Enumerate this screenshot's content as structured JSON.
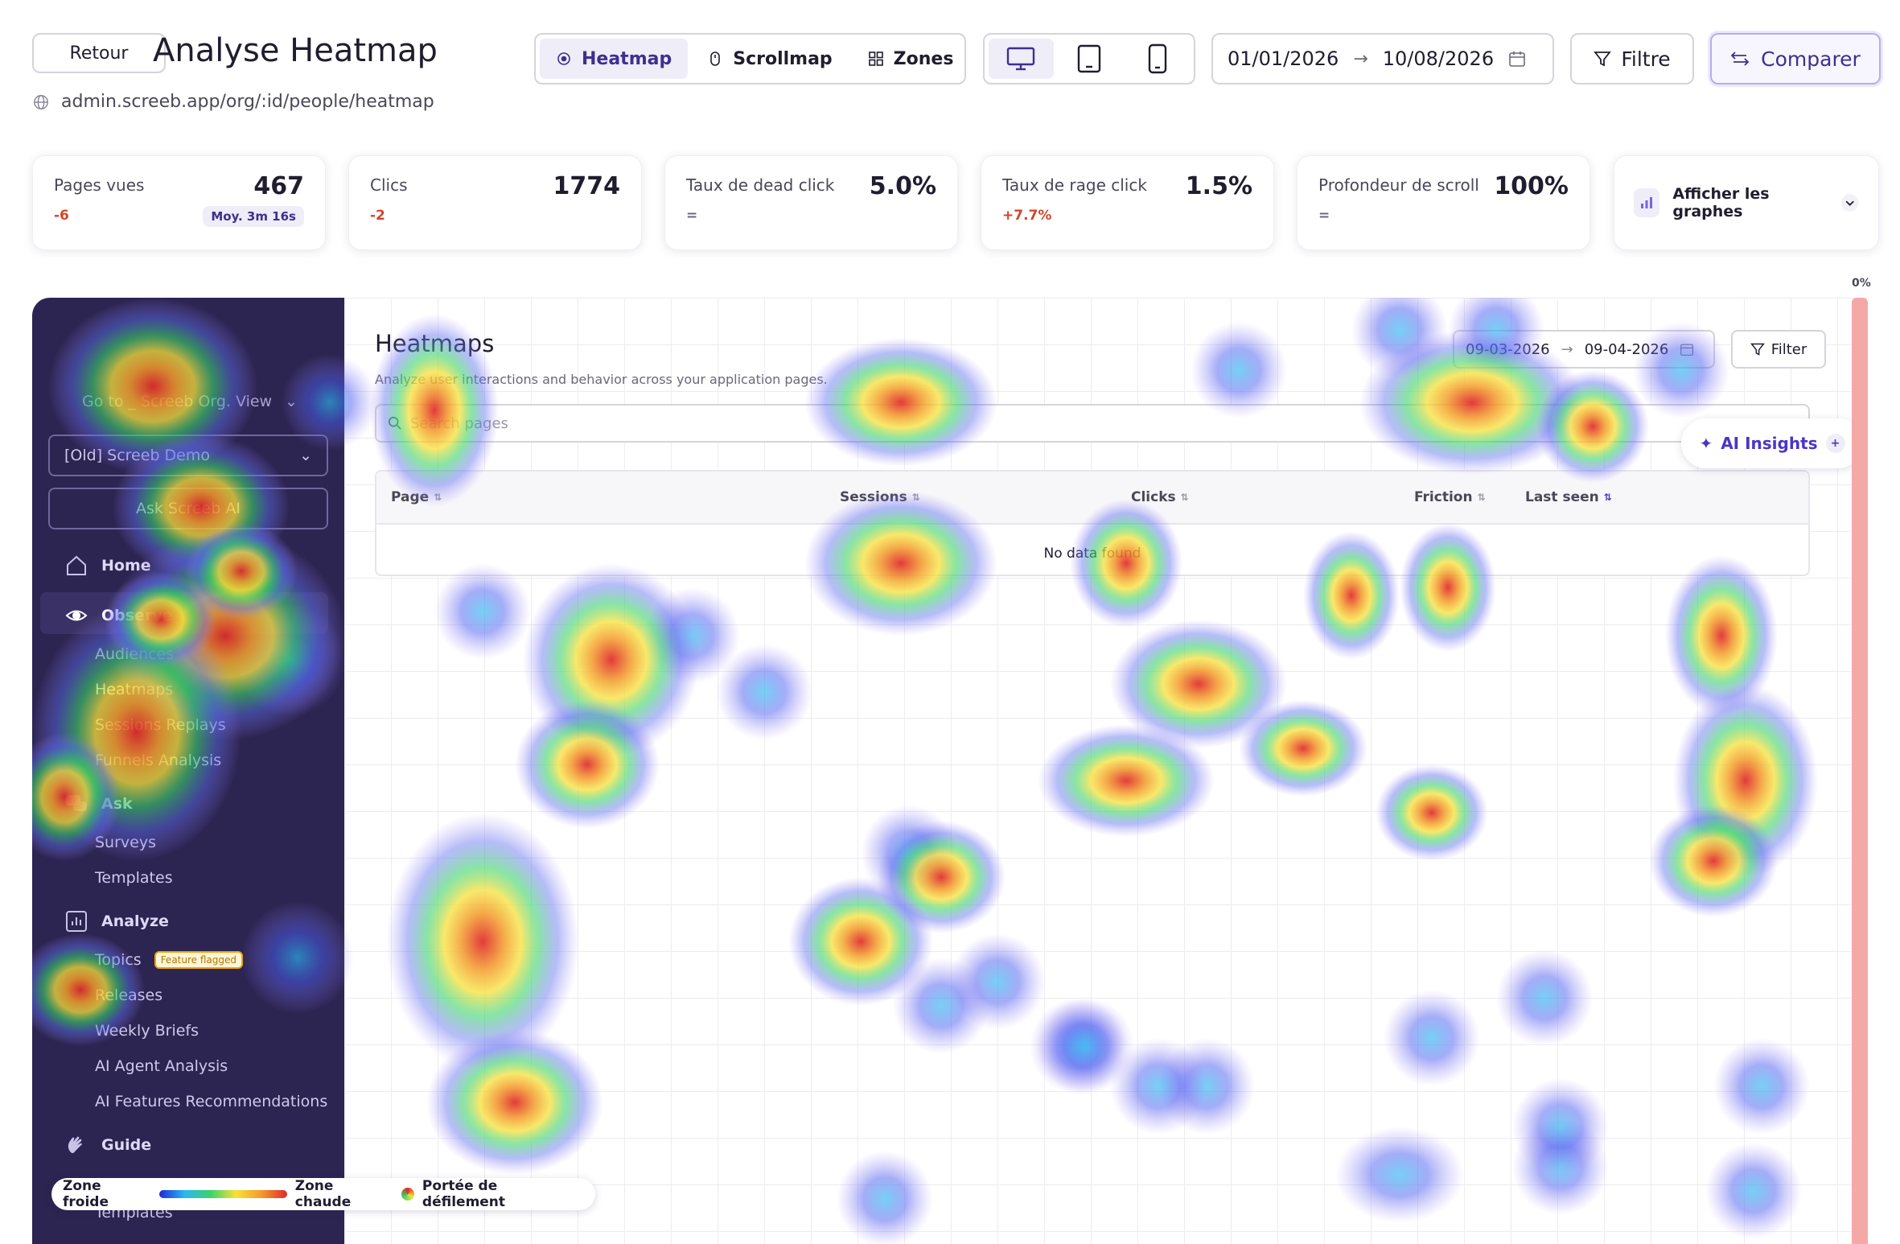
{
  "header": {
    "back_label": "Retour",
    "title": "Analyse Heatmap",
    "url": "admin.screeb.app/org/:id/people/heatmap",
    "modes": [
      {
        "label": "Heatmap",
        "icon": "target-icon",
        "active": true
      },
      {
        "label": "Scrollmap",
        "icon": "mouse-icon",
        "active": false
      },
      {
        "label": "Zones",
        "icon": "grid-icon",
        "active": false
      }
    ],
    "devices": [
      {
        "name": "desktop",
        "icon": "desktop-icon",
        "active": true
      },
      {
        "name": "tablet",
        "icon": "tablet-icon",
        "active": false
      },
      {
        "name": "mobile",
        "icon": "mobile-icon",
        "active": false
      }
    ],
    "date_from": "01/01/2026",
    "date_arrow": "→",
    "date_to": "10/08/2026",
    "filter_label": "Filtre",
    "compare_label": "Comparer"
  },
  "stats": [
    {
      "label": "Pages vues",
      "value": "467",
      "delta": "-6",
      "delta_type": "neg",
      "badge": "Moy. 3m 16s"
    },
    {
      "label": "Clics",
      "value": "1774",
      "delta": "-2",
      "delta_type": "neg"
    },
    {
      "label": "Taux de dead click",
      "value": "5.0%",
      "delta": "=",
      "delta_type": "neutral"
    },
    {
      "label": "Taux de rage click",
      "value": "1.5%",
      "delta": "+7.7%",
      "delta_type": "neg"
    },
    {
      "label": "Profondeur de scroll",
      "value": "100%",
      "delta": "=",
      "delta_type": "neutral"
    }
  ],
  "graph_toggle": "Afficher les graphes",
  "scroll_indicator": "0%",
  "preview": {
    "sidebar": {
      "goto": "Go to _ Screeb Org. View",
      "workspace": "[Old] Screeb Demo",
      "ask_ai": "Ask Screeb AI",
      "home": "Home",
      "observe": "Observe",
      "observe_items": [
        "Audiences",
        "Heatmaps",
        "Sessions Replays",
        "Funnels Analysis"
      ],
      "ask": "Ask",
      "ask_items": [
        "Surveys",
        "Templates"
      ],
      "analyze": "Analyze",
      "analyze_items": [
        "Topics",
        "Releases",
        "Weekly Briefs",
        "AI Agent Analysis",
        "AI Features Recommendations"
      ],
      "feature_flag": "Feature flagged",
      "guide": "Guide",
      "guide_items": [
        "Templates"
      ]
    },
    "main": {
      "title": "Heatmaps",
      "subtitle": "Analyze user interactions and behavior across your application pages.",
      "date_from": "09-03-2026",
      "date_arrow": "→",
      "date_to": "09-04-2026",
      "filter_label": "Filter",
      "search_placeholder": "Search pages",
      "ai_insights": "AI Insights",
      "columns": [
        "Page",
        "Sessions",
        "Clicks",
        "Friction",
        "Last seen"
      ],
      "empty": "No data found"
    }
  },
  "legend": {
    "cold": "Zone froide",
    "hot": "Zone chaude",
    "scroll": "Portée de défilement"
  },
  "colors": {
    "accent": "#3f2f8f",
    "sidebar_bg": "#2c2552",
    "negative": "#d2462a",
    "scroll_bar": "#f5a8a8"
  }
}
